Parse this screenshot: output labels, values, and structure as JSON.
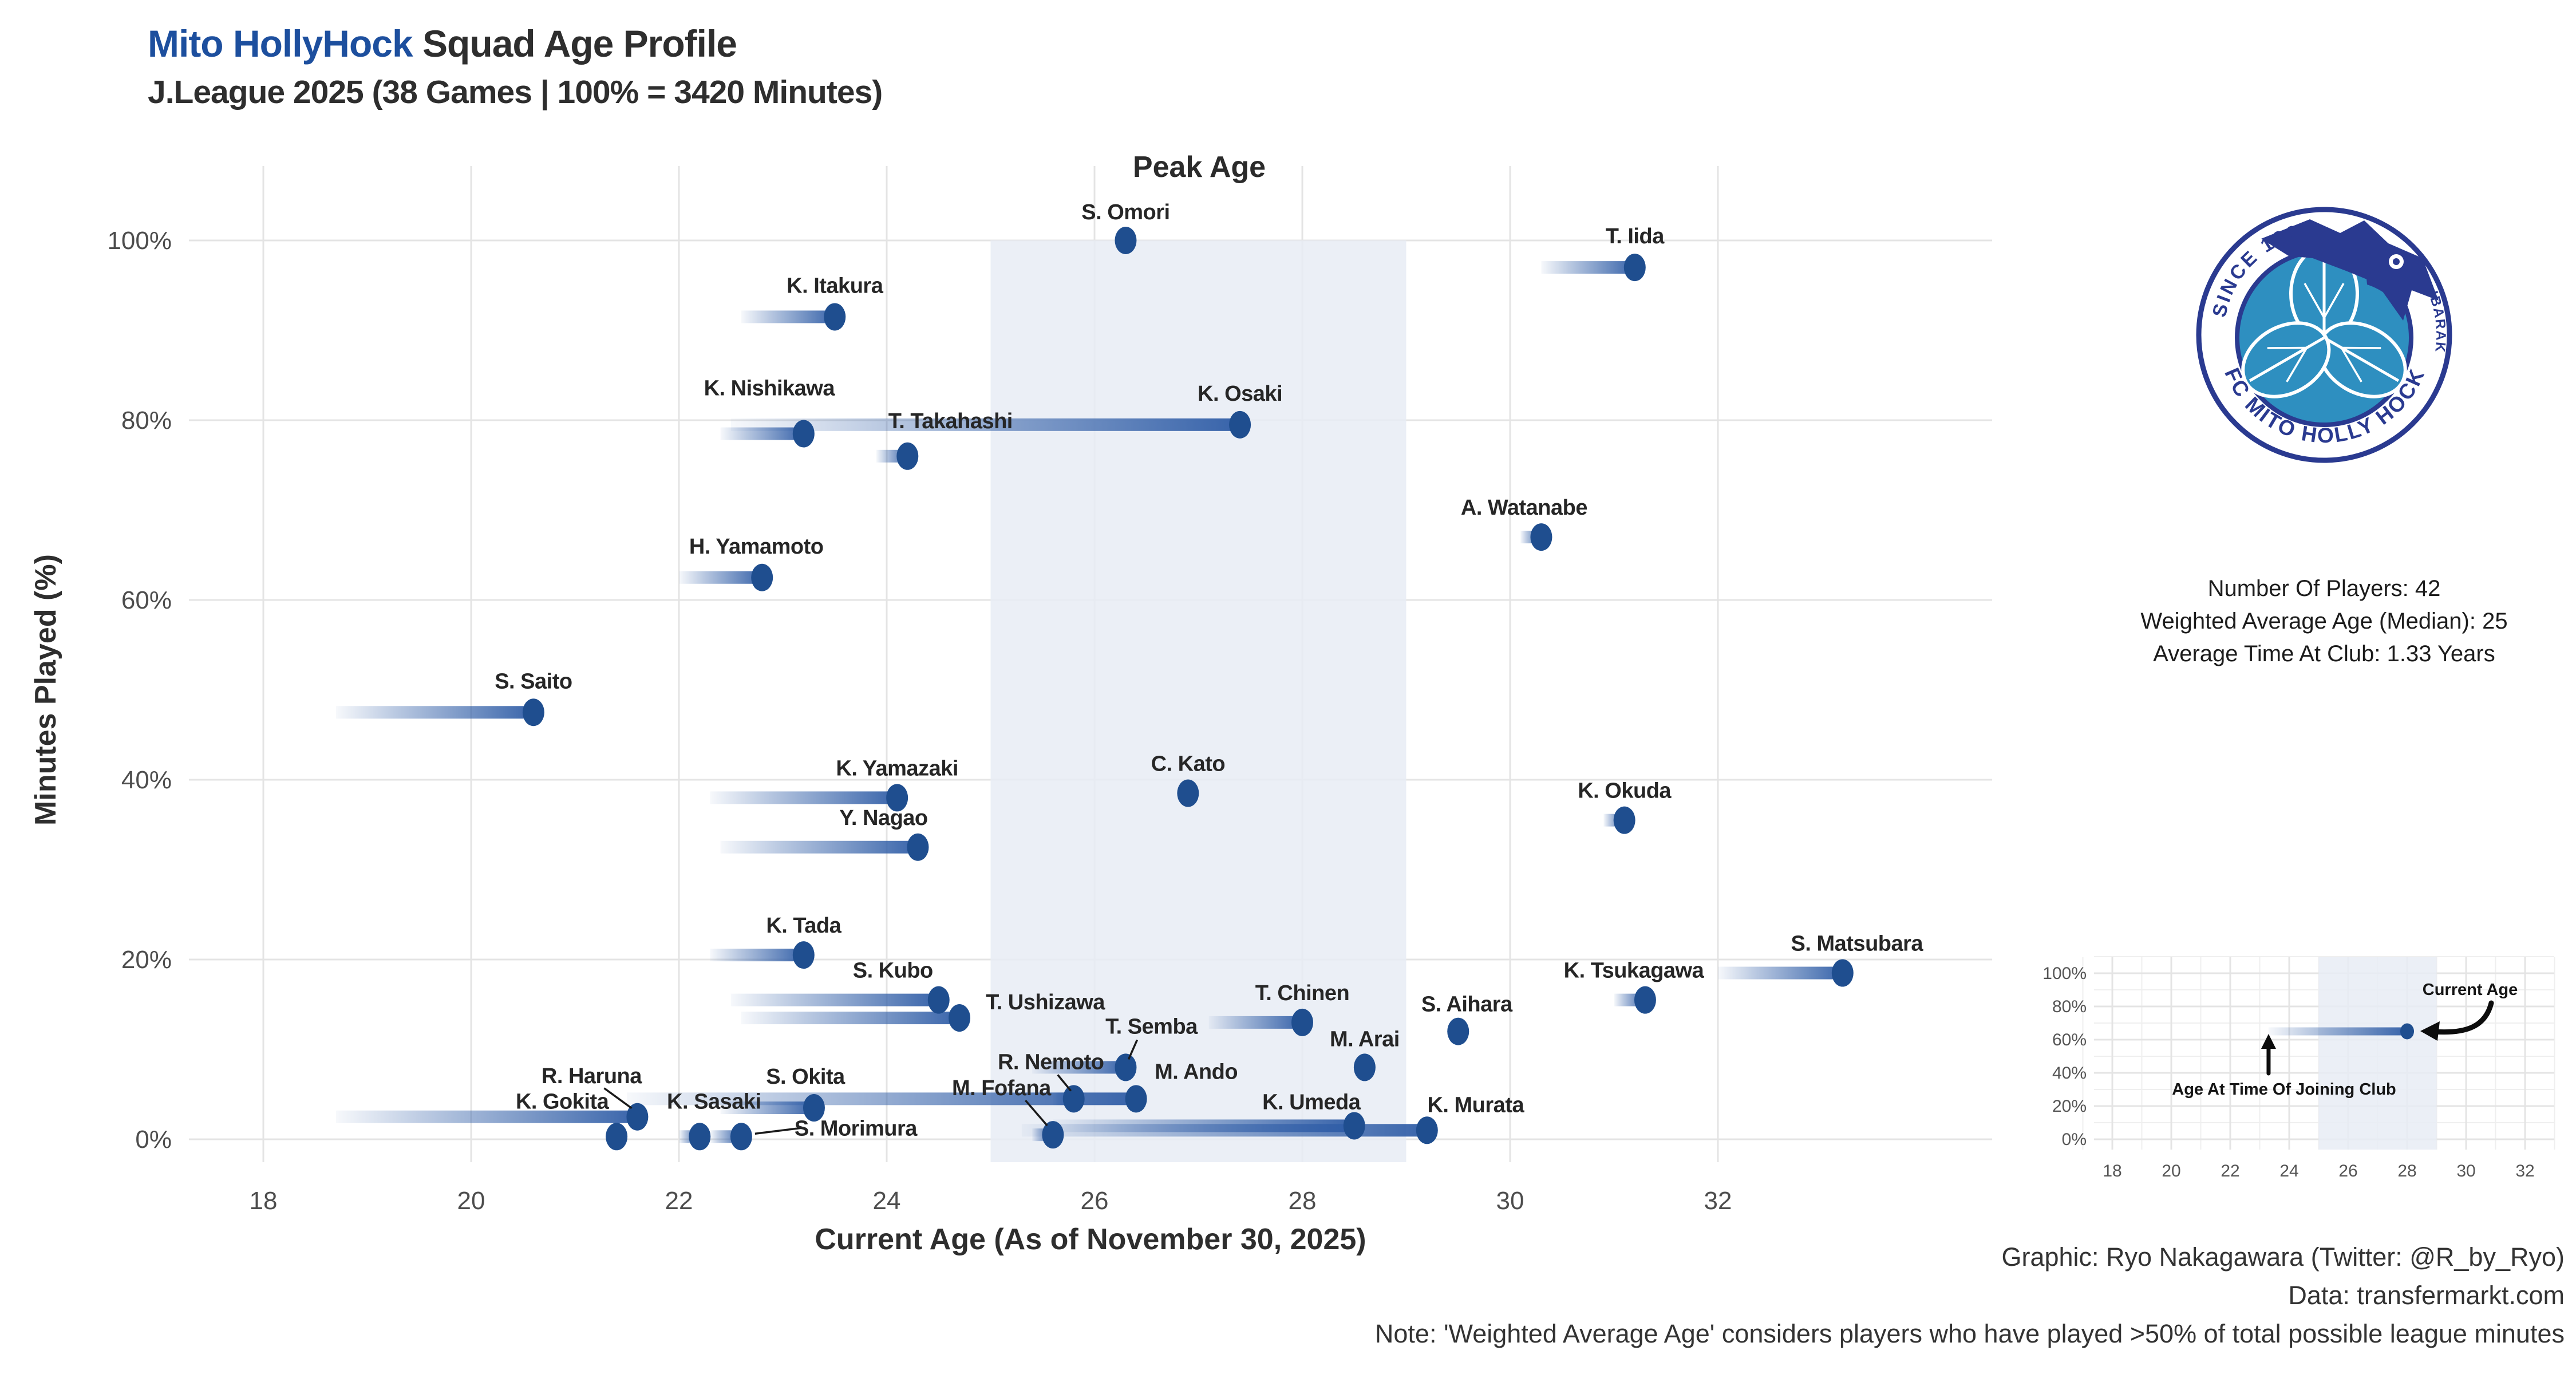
{
  "header": {
    "title_club": "Mito HollyHock",
    "title_rest": " Squad Age Profile",
    "subtitle": "J.League 2025 (38 Games | 100% = 3420 Minutes)"
  },
  "colors": {
    "accent_blue": "#1d4f9e",
    "dot_navy": "#1f4e8f",
    "bar_blue": "#2e5ca6",
    "peak_band": "#e8ecf5",
    "grid": "#e4e4e4",
    "text_dark": "#2e2e2e",
    "tick_gray": "#4d4d4d",
    "logo_navy": "#2a3a90",
    "logo_teal": "#2e8fc0"
  },
  "chart_data": [
    {
      "type": "scatter",
      "title": "Peak Age",
      "xlabel": "Current Age (As of November 30, 2025)",
      "ylabel": "Minutes Played (%)",
      "x_ticks": [
        18,
        20,
        22,
        24,
        26,
        28,
        30,
        32
      ],
      "y_ticks": [
        0,
        20,
        40,
        60,
        80,
        100
      ],
      "xlim": [
        17.3,
        34.3
      ],
      "ylim": [
        -3,
        107
      ],
      "grid": true,
      "legend_position": "none",
      "peak_age_band": [
        25,
        29
      ],
      "series_note": "Each player: faded segment start = age at time of joining club, dot = current age vs % of league minutes played",
      "players": [
        {
          "name": "S. Omori",
          "join": 26.2,
          "age": 26.3,
          "pct": 100,
          "lx": 0,
          "ly": -50
        },
        {
          "name": "T. Iida",
          "join": 30.3,
          "age": 31.2,
          "pct": 97,
          "lx": 0,
          "ly": -55
        },
        {
          "name": "K. Itakura",
          "join": 22.6,
          "age": 23.5,
          "pct": 91.5,
          "lx": 0,
          "ly": -55
        },
        {
          "name": "K. Nishikawa",
          "join": 22.4,
          "age": 23.2,
          "pct": 78.5,
          "lx": -60,
          "ly": -80
        },
        {
          "name": "K. Osaki",
          "join": 22.5,
          "age": 27.4,
          "pct": 79.5,
          "lx": 0,
          "ly": -55
        },
        {
          "name": "T. Takahashi",
          "join": 23.9,
          "age": 24.2,
          "pct": 76,
          "lx": 75,
          "ly": -62
        },
        {
          "name": "A. Watanabe",
          "join": 30.1,
          "age": 30.3,
          "pct": 67,
          "lx": -30,
          "ly": -52
        },
        {
          "name": "H. Yamamoto",
          "join": 22.0,
          "age": 22.8,
          "pct": 62.5,
          "lx": -10,
          "ly": -55
        },
        {
          "name": "S. Saito",
          "join": 18.7,
          "age": 20.6,
          "pct": 47.5,
          "lx": 0,
          "ly": -55
        },
        {
          "name": "C. Kato",
          "join": 26.8,
          "age": 26.9,
          "pct": 38.5,
          "lx": 0,
          "ly": -52
        },
        {
          "name": "K. Yamazaki",
          "join": 22.3,
          "age": 24.1,
          "pct": 38,
          "lx": 0,
          "ly": -52
        },
        {
          "name": "K. Okuda",
          "join": 30.9,
          "age": 31.1,
          "pct": 35.5,
          "lx": 0,
          "ly": -52
        },
        {
          "name": "Y. Nagao",
          "join": 22.4,
          "age": 24.3,
          "pct": 32.5,
          "lx": -60,
          "ly": -52
        },
        {
          "name": "K. Tada",
          "join": 22.3,
          "age": 23.2,
          "pct": 20.5,
          "lx": 0,
          "ly": -52
        },
        {
          "name": "S. Matsubara",
          "join": 32.0,
          "age": 33.2,
          "pct": 18.5,
          "lx": 25,
          "ly": -52
        },
        {
          "name": "S. Kubo",
          "join": 22.5,
          "age": 24.5,
          "pct": 15.5,
          "lx": -80,
          "ly": -52
        },
        {
          "name": "K. Tsukagawa",
          "join": 31.0,
          "age": 31.3,
          "pct": 15.5,
          "lx": -20,
          "ly": -52
        },
        {
          "name": "T. Ushizawa",
          "join": 22.6,
          "age": 24.7,
          "pct": 13.5,
          "lx": 150,
          "ly": -28
        },
        {
          "name": "T. Chinen",
          "join": 27.1,
          "age": 28.0,
          "pct": 13,
          "lx": 0,
          "ly": -52
        },
        {
          "name": "S. Aihara",
          "join": 29.4,
          "age": 29.5,
          "pct": 12,
          "lx": 15,
          "ly": -48
        },
        {
          "name": "T. Semba",
          "join": 25.4,
          "age": 26.3,
          "pct": 8,
          "lx": 45,
          "ly": -72,
          "leader": [
            20,
            -48,
            5,
            -14
          ]
        },
        {
          "name": "M. Arai",
          "join": 28.5,
          "age": 28.6,
          "pct": 8,
          "lx": 0,
          "ly": -50
        },
        {
          "name": "R. Nemoto",
          "join": 25.6,
          "age": 25.8,
          "pct": 4.5,
          "lx": -40,
          "ly": -65,
          "leader": [
            -28,
            -42,
            -5,
            -14
          ]
        },
        {
          "name": "M. Ando",
          "join": 21.5,
          "age": 26.4,
          "pct": 4.5,
          "lx": 105,
          "ly": -48
        },
        {
          "name": "S. Okita",
          "join": 22.4,
          "age": 23.3,
          "pct": 3.5,
          "lx": -15,
          "ly": -55
        },
        {
          "name": "R. Haruna",
          "join": 18.7,
          "age": 21.6,
          "pct": 2.5,
          "lx": -80,
          "ly": -72,
          "leader": [
            -58,
            -50,
            -10,
            -15
          ]
        },
        {
          "name": "K. Umeda",
          "join": 25.6,
          "age": 28.5,
          "pct": 1.5,
          "lx": -75,
          "ly": -42
        },
        {
          "name": "K. Murata",
          "join": 25.3,
          "age": 29.2,
          "pct": 1,
          "lx": 85,
          "ly": -45
        },
        {
          "name": "K. Gokita",
          "join": 21.3,
          "age": 21.4,
          "pct": 0.3,
          "lx": -95,
          "ly": -62
        },
        {
          "name": "K. Sasaki",
          "join": 22.0,
          "age": 22.2,
          "pct": 0.3,
          "lx": 25,
          "ly": -62
        },
        {
          "name": "S. Morimura",
          "join": 22.3,
          "age": 22.6,
          "pct": 0.3,
          "lx": 200,
          "ly": -15,
          "leader": [
            105,
            -15,
            24,
            -5
          ]
        },
        {
          "name": "M. Fofana",
          "join": 25.4,
          "age": 25.6,
          "pct": 0.5,
          "lx": -90,
          "ly": -82,
          "leader": [
            -48,
            -60,
            -10,
            -16
          ]
        }
      ]
    },
    {
      "type": "scatter",
      "role": "legend_inset",
      "x_ticks": [
        18,
        20,
        22,
        24,
        26,
        28,
        30,
        32
      ],
      "y_ticks": [
        0,
        20,
        40,
        60,
        80,
        100
      ],
      "peak_age_band": [
        25,
        29
      ],
      "example_point": {
        "join": 23.3,
        "age": 28,
        "pct": 65
      },
      "annotations": {
        "current_age": "Current Age",
        "join_age": "Age At Time Of Joining Club"
      }
    }
  ],
  "stats_panel": {
    "line1": "Number Of Players: 42",
    "line2": "Weighted Average Age (Median): 25",
    "line3": "Average Time At Club: 1.33 Years"
  },
  "logo": {
    "arc_top": "SINCE 1994",
    "arc_bottom": "FC MITO HOLLY HOCK",
    "arc_right": "IBARAKI"
  },
  "credits": {
    "line1": "Graphic: Ryo Nakagawara (Twitter: @R_by_Ryo)",
    "line2": "Data: transfermarkt.com",
    "line3": "Note: 'Weighted Average Age' considers players who have played >50% of total possible league minutes"
  }
}
